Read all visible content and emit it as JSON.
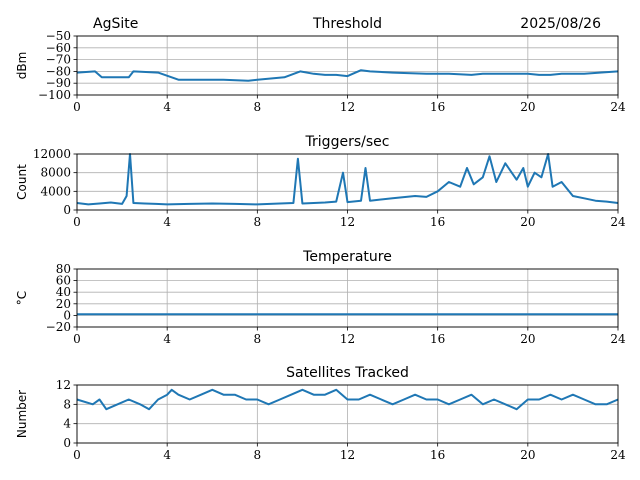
{
  "header": {
    "site": "AgSite",
    "date": "2025/08/26"
  },
  "colors": {
    "line": "#1f77b4",
    "grid": "#b0b0b0",
    "axes": "#000000"
  },
  "chart_data": [
    {
      "type": "line",
      "title": "Threshold",
      "ylabel": "dBm",
      "xlabel": "",
      "xlim": [
        0,
        24
      ],
      "ylim": [
        -100,
        -50
      ],
      "xticks": [
        "0",
        "4",
        "8",
        "12",
        "16",
        "20",
        "24"
      ],
      "yticks": [
        "−50",
        "−60",
        "−70",
        "−80",
        "−90",
        "−100"
      ],
      "ytick_values": [
        -50,
        -60,
        -70,
        -80,
        -90,
        -100
      ],
      "grid": true,
      "series": [
        {
          "x": [
            0,
            0.8,
            1.1,
            2.3,
            2.5,
            3.6,
            4.5,
            4.6,
            6.5,
            7.6,
            8.0,
            9.2,
            9.9,
            10.5,
            11.0,
            11.5,
            12.0,
            12.6,
            13.0,
            14.0,
            15.5,
            16.5,
            17.5,
            18.0,
            19.0,
            20.0,
            20.5,
            21.0,
            21.5,
            22.5,
            23.2,
            24
          ],
          "y": [
            -81,
            -80,
            -85,
            -85,
            -80,
            -81,
            -87,
            -87,
            -87,
            -88,
            -87,
            -85,
            -80,
            -82,
            -83,
            -83,
            -84,
            -79,
            -80,
            -81,
            -82,
            -82,
            -83,
            -82,
            -82,
            -82,
            -83,
            -83,
            -82,
            -82,
            -81,
            -80
          ]
        }
      ]
    },
    {
      "type": "line",
      "title": "Triggers/sec",
      "ylabel": "Count",
      "xlabel": "",
      "xlim": [
        0,
        24
      ],
      "ylim": [
        0,
        12000
      ],
      "xticks": [
        "0",
        "4",
        "8",
        "12",
        "16",
        "20",
        "24"
      ],
      "yticks": [
        "0",
        "4000",
        "8000",
        "12000"
      ],
      "ytick_values": [
        0,
        4000,
        8000,
        12000
      ],
      "grid": true,
      "series": [
        {
          "x": [
            0,
            0.5,
            1,
            1.5,
            2,
            2.2,
            2.35,
            2.5,
            3,
            3.5,
            4,
            5,
            6,
            7,
            8,
            9,
            9.6,
            9.8,
            10,
            10.5,
            11,
            11.5,
            11.8,
            12,
            12.6,
            12.8,
            13,
            14,
            15,
            15.5,
            16,
            16.5,
            17,
            17.3,
            17.6,
            18,
            18.3,
            18.6,
            19,
            19.5,
            19.8,
            20,
            20.3,
            20.6,
            20.9,
            21.1,
            21.5,
            22,
            22.5,
            23,
            23.5,
            24
          ],
          "y": [
            1500,
            1200,
            1400,
            1600,
            1300,
            3000,
            12000,
            1500,
            1400,
            1300,
            1200,
            1300,
            1400,
            1300,
            1200,
            1400,
            1500,
            11000,
            1400,
            1500,
            1600,
            1800,
            8000,
            1700,
            2000,
            9000,
            2000,
            2500,
            3000,
            2800,
            4000,
            6000,
            5000,
            9000,
            5500,
            7000,
            11500,
            6000,
            10000,
            6500,
            9000,
            5000,
            8000,
            7000,
            12000,
            5000,
            6000,
            3000,
            2500,
            2000,
            1800,
            1500
          ]
        }
      ]
    },
    {
      "type": "line",
      "title": "Temperature",
      "ylabel": "°C",
      "xlabel": "",
      "xlim": [
        0,
        24
      ],
      "ylim": [
        -20,
        80
      ],
      "xticks": [
        "0",
        "4",
        "8",
        "12",
        "16",
        "20",
        "24"
      ],
      "yticks": [
        "−20",
        "0",
        "20",
        "40",
        "60",
        "80"
      ],
      "ytick_values": [
        -20,
        0,
        20,
        40,
        60,
        80
      ],
      "grid": true,
      "series": [
        {
          "x": [
            0,
            24
          ],
          "y": [
            2,
            2
          ]
        }
      ]
    },
    {
      "type": "line",
      "title": "Satellites Tracked",
      "ylabel": "Number",
      "xlabel": "",
      "xlim": [
        0,
        24
      ],
      "ylim": [
        0,
        12
      ],
      "xticks": [
        "0",
        "4",
        "8",
        "12",
        "16",
        "20",
        "24"
      ],
      "yticks": [
        "0",
        "4",
        "8",
        "12"
      ],
      "ytick_values": [
        0,
        4,
        8,
        12
      ],
      "grid": true,
      "series": [
        {
          "x": [
            0,
            0.7,
            1.0,
            1.3,
            1.8,
            2.3,
            2.8,
            3.2,
            3.6,
            4.0,
            4.2,
            4.5,
            5.0,
            5.5,
            6.0,
            6.5,
            7.0,
            7.5,
            8.0,
            8.5,
            9.0,
            9.5,
            10.0,
            10.5,
            11.0,
            11.5,
            12.0,
            12.5,
            13.0,
            13.5,
            14.0,
            14.5,
            15.0,
            15.5,
            16.0,
            16.5,
            17.0,
            17.5,
            18.0,
            18.5,
            19.0,
            19.5,
            20.0,
            20.5,
            21.0,
            21.5,
            22.0,
            22.5,
            23.0,
            23.5,
            24
          ],
          "y": [
            9,
            8,
            9,
            7,
            8,
            9,
            8,
            7,
            9,
            10,
            11,
            10,
            9,
            10,
            11,
            10,
            10,
            9,
            9,
            8,
            9,
            10,
            11,
            10,
            10,
            11,
            9,
            9,
            10,
            9,
            8,
            9,
            10,
            9,
            9,
            8,
            9,
            10,
            8,
            9,
            8,
            7,
            9,
            9,
            10,
            9,
            10,
            9,
            8,
            8,
            9
          ]
        }
      ]
    }
  ]
}
